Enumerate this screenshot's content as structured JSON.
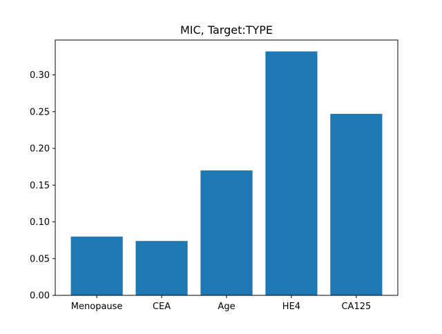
{
  "chart_data": {
    "type": "bar",
    "title": "MIC, Target:TYPE",
    "xlabel": "",
    "ylabel": "",
    "categories": [
      "Menopause",
      "CEA",
      "Age",
      "HE4",
      "CA125"
    ],
    "values": [
      0.08,
      0.074,
      0.17,
      0.332,
      0.247
    ],
    "ylim": [
      0,
      0.3475
    ],
    "yticks": [
      0.0,
      0.05,
      0.1,
      0.15,
      0.2,
      0.25,
      0.3
    ],
    "ytick_labels": [
      "0.00",
      "0.05",
      "0.10",
      "0.15",
      "0.20",
      "0.25",
      "0.30"
    ],
    "grid": false,
    "bar_color": "#1f77b4"
  }
}
